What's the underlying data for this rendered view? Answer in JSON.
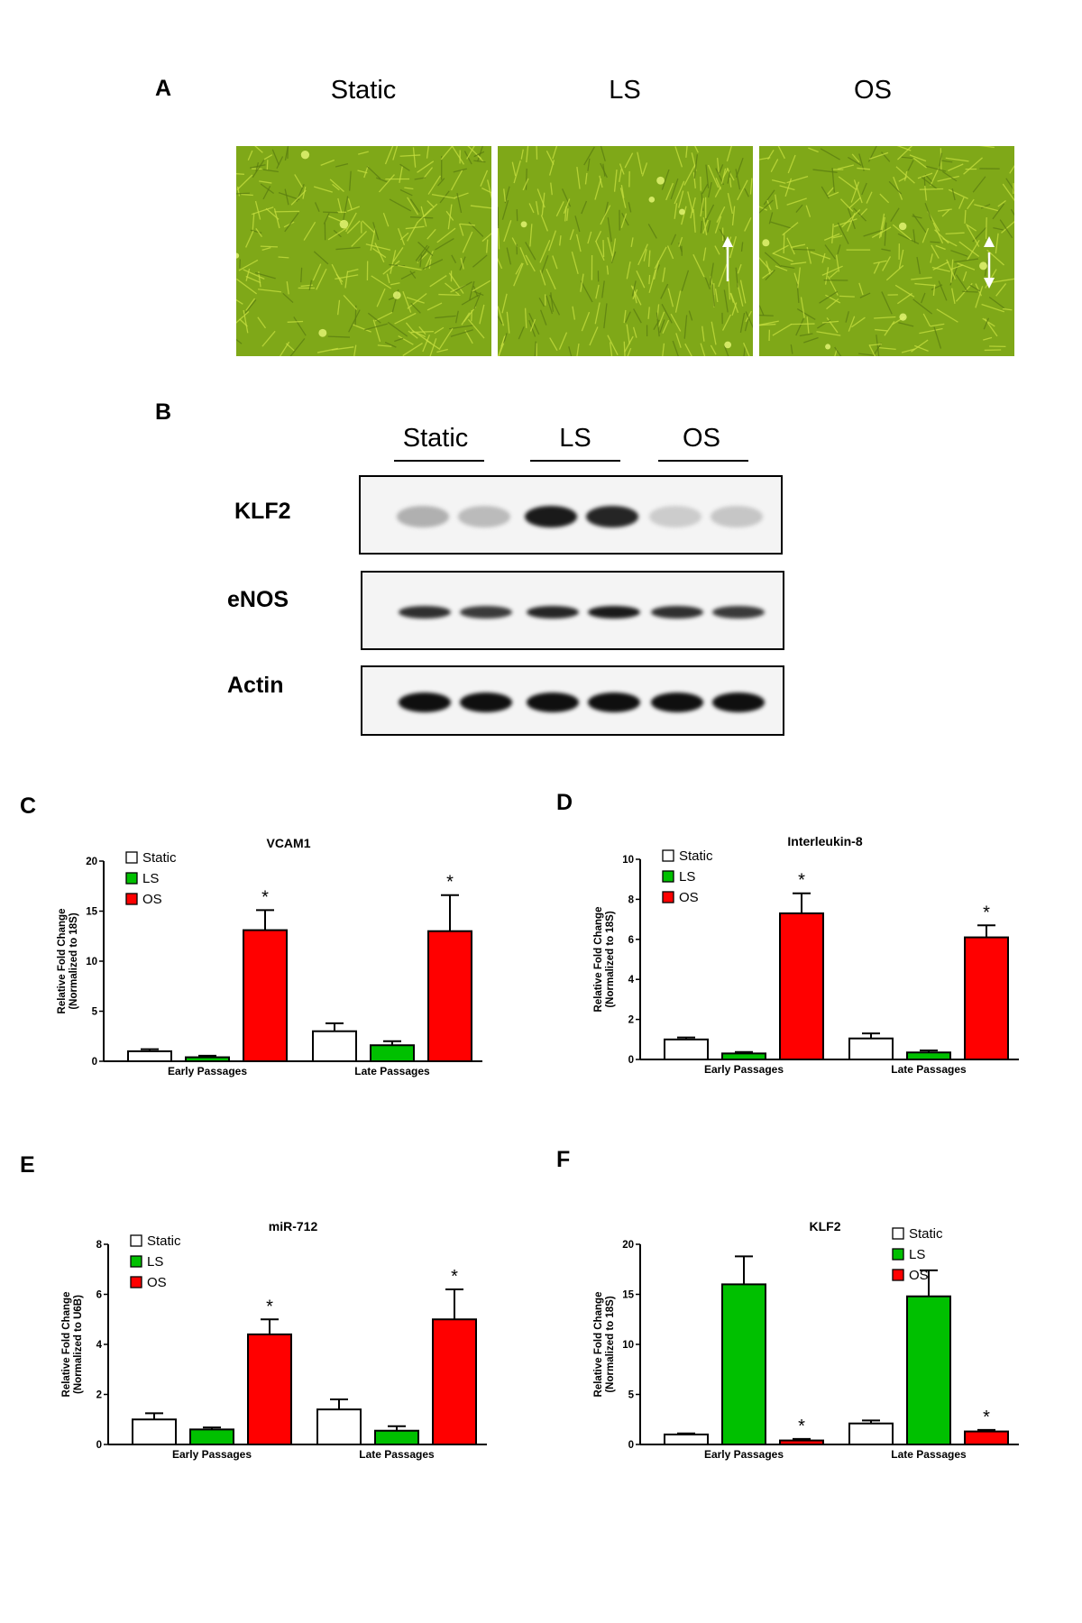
{
  "panels": {
    "A": {
      "letter": "A",
      "conditions": [
        "Static",
        "LS",
        "OS"
      ],
      "arrows": [
        "none",
        "unidirectional",
        "bidirectional"
      ]
    },
    "B": {
      "letter": "B",
      "groups": [
        "Static",
        "LS",
        "OS"
      ],
      "rows": [
        {
          "label": "KLF2",
          "band_intensity": [
            0.25,
            0.2,
            0.95,
            0.9,
            0.12,
            0.15
          ]
        },
        {
          "label": "eNOS",
          "band_intensity": [
            0.85,
            0.8,
            0.9,
            0.95,
            0.85,
            0.8
          ]
        },
        {
          "label": "Actin",
          "band_intensity": [
            1,
            1,
            1,
            1,
            1,
            1
          ]
        }
      ]
    },
    "C": {
      "letter": "C"
    },
    "D": {
      "letter": "D"
    },
    "E": {
      "letter": "E"
    },
    "F": {
      "letter": "F"
    }
  },
  "colors": {
    "Static": "#ffffff",
    "LS": "#00c000",
    "OS": "#ff0000",
    "micro_bg": "#7fa818",
    "micro_cell": "#c8e040"
  },
  "chart_data": [
    {
      "panel": "C",
      "type": "bar",
      "title": "VCAM1",
      "ylabel": "Relative Fold Change\n(Normalized to 18S)",
      "categories": [
        "Early Passages",
        "Late Passages"
      ],
      "ylim": [
        0,
        20
      ],
      "yticks": [
        0,
        5,
        10,
        15,
        20
      ],
      "series": [
        {
          "name": "Static",
          "values": [
            1.0,
            3.0
          ],
          "errors": [
            0.2,
            0.8
          ]
        },
        {
          "name": "LS",
          "values": [
            0.4,
            1.6
          ],
          "errors": [
            0.15,
            0.4
          ]
        },
        {
          "name": "OS",
          "values": [
            13.1,
            13.0
          ],
          "errors": [
            2.0,
            3.6
          ]
        }
      ],
      "significance": [
        "*",
        "*"
      ],
      "legend": "top-left"
    },
    {
      "panel": "D",
      "type": "bar",
      "title": "Interleukin-8",
      "ylabel": "Relative Fold Change\n(Normalized to 18S)",
      "categories": [
        "Early Passages",
        "Late Passages"
      ],
      "ylim": [
        0,
        10
      ],
      "yticks": [
        0,
        2,
        4,
        6,
        8,
        10
      ],
      "series": [
        {
          "name": "Static",
          "values": [
            1.0,
            1.05
          ],
          "errors": [
            0.1,
            0.25
          ]
        },
        {
          "name": "LS",
          "values": [
            0.3,
            0.35
          ],
          "errors": [
            0.07,
            0.1
          ]
        },
        {
          "name": "OS",
          "values": [
            7.3,
            6.1
          ],
          "errors": [
            1.0,
            0.6
          ]
        }
      ],
      "significance": [
        "*",
        "*"
      ],
      "legend": "top-left"
    },
    {
      "panel": "E",
      "type": "bar",
      "title": "miR-712",
      "ylabel": "Relative Fold Change\n(Normalized to U6B)",
      "categories": [
        "Early Passages",
        "Late Passages"
      ],
      "ylim": [
        0,
        8
      ],
      "yticks": [
        0,
        2,
        4,
        6,
        8
      ],
      "series": [
        {
          "name": "Static",
          "values": [
            1.0,
            1.4
          ],
          "errors": [
            0.25,
            0.4
          ]
        },
        {
          "name": "LS",
          "values": [
            0.6,
            0.55
          ],
          "errors": [
            0.08,
            0.18
          ]
        },
        {
          "name": "OS",
          "values": [
            4.4,
            5.0
          ],
          "errors": [
            0.6,
            1.2
          ]
        }
      ],
      "significance": [
        "*",
        "*"
      ],
      "legend": "top-left"
    },
    {
      "panel": "F",
      "type": "bar",
      "title": "KLF2",
      "ylabel": "Relative Fold Change\n(Normalized to 18S)",
      "categories": [
        "Early Passages",
        "Late Passages"
      ],
      "ylim": [
        0,
        20
      ],
      "yticks": [
        0,
        5,
        10,
        15,
        20
      ],
      "series": [
        {
          "name": "Static",
          "values": [
            1.0,
            2.1
          ],
          "errors": [
            0.1,
            0.3
          ]
        },
        {
          "name": "LS",
          "values": [
            16.0,
            14.8
          ],
          "errors": [
            2.8,
            2.6
          ]
        },
        {
          "name": "OS",
          "values": [
            0.4,
            1.3
          ],
          "errors": [
            0.15,
            0.15
          ]
        }
      ],
      "significance": [
        "*",
        "*"
      ],
      "legend": "top-right"
    }
  ]
}
